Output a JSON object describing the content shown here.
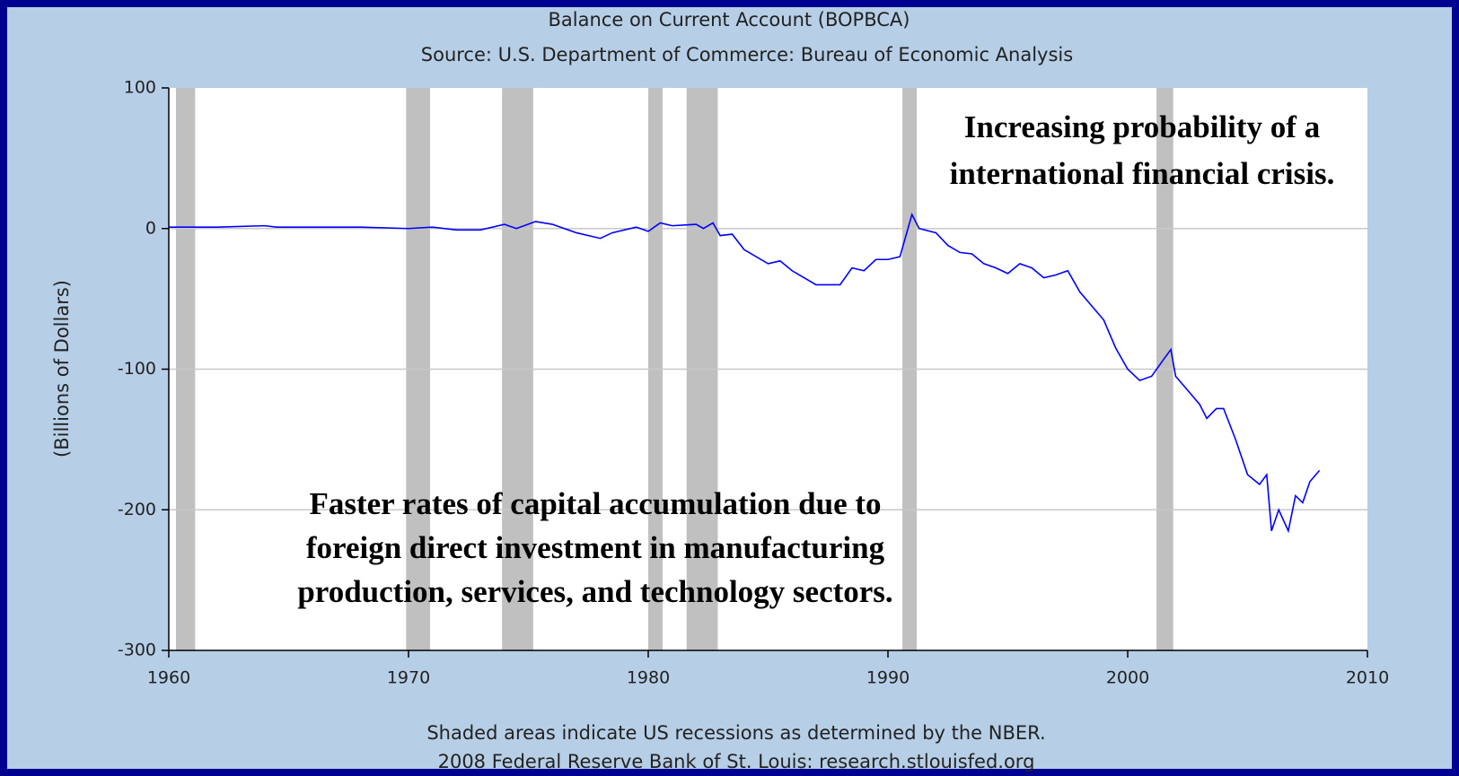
{
  "chart_data": {
    "type": "line",
    "title": "Balance on Current Account (BOPBCA)",
    "subtitle": "Source: U.S. Department of Commerce: Bureau of Economic Analysis",
    "y_label": "(Billions of Dollars)",
    "footnotes": [
      "Shaded areas indicate US recessions as determined by the NBER.",
      "2008 Federal Reserve Bank of St. Louis: research.stlouisfed.org"
    ],
    "annotations": [
      [
        "Increasing probability of a",
        "international financial crisis."
      ],
      [
        "Faster rates of capital accumulation due to",
        "foreign direct investment in manufacturing",
        "production, services, and technology sectors."
      ]
    ],
    "recessions": [
      [
        1960.3,
        1961.1
      ],
      [
        1969.9,
        1970.9
      ],
      [
        1973.9,
        1975.2
      ],
      [
        1980.0,
        1980.6
      ],
      [
        1981.6,
        1982.9
      ],
      [
        1990.6,
        1991.2
      ],
      [
        2001.2,
        2001.9
      ]
    ],
    "xlim": [
      1960,
      2010
    ],
    "xticks": [
      1960,
      1970,
      1980,
      1990,
      2000,
      2010
    ],
    "ylim": [
      -300,
      100
    ],
    "yticks": [
      -300,
      -200,
      -100,
      0,
      100
    ],
    "grid": true,
    "series": [
      {
        "name": "BOPBCA",
        "color": "#0000ff",
        "x": [
          1960,
          1962,
          1964,
          1964.5,
          1966,
          1968,
          1970,
          1971,
          1972,
          1973,
          1974,
          1974.5,
          1975.3,
          1976,
          1977,
          1978,
          1978.5,
          1979.5,
          1980,
          1980.5,
          1981,
          1982,
          1982.3,
          1982.7,
          1983,
          1983.5,
          1984,
          1985,
          1985.5,
          1986,
          1986.5,
          1987,
          1988,
          1988.5,
          1989,
          1989.5,
          1990,
          1990.5,
          1991,
          1991.3,
          1992,
          1992.5,
          1993,
          1993.5,
          1994,
          1994.5,
          1995,
          1995.5,
          1996,
          1996.5,
          1997,
          1997.5,
          1998,
          1998.5,
          1999,
          1999.5,
          2000,
          2000.5,
          2001,
          2001.5,
          2001.8,
          2002,
          2002.5,
          2003,
          2003.3,
          2003.7,
          2004,
          2004.5,
          2005,
          2005.5,
          2005.8,
          2006,
          2006.3,
          2006.7,
          2007,
          2007.3,
          2007.6,
          2008
        ],
        "values": [
          1,
          1,
          2,
          1,
          1,
          1,
          0,
          1,
          -1,
          -1,
          3,
          0,
          5,
          3,
          -3,
          -7,
          -3,
          1,
          -2,
          4,
          2,
          3,
          0,
          4,
          -5,
          -4,
          -15,
          -25,
          -23,
          -30,
          -35,
          -40,
          -40,
          -28,
          -30,
          -22,
          -22,
          -20,
          10,
          0,
          -3,
          -12,
          -17,
          -18,
          -25,
          -28,
          -32,
          -25,
          -28,
          -35,
          -33,
          -30,
          -45,
          -55,
          -65,
          -85,
          -100,
          -108,
          -105,
          -93,
          -86,
          -105,
          -115,
          -125,
          -135,
          -128,
          -128,
          -150,
          -175,
          -182,
          -175,
          -215,
          -200,
          -215,
          -190,
          -195,
          -180,
          -172
        ]
      }
    ]
  }
}
